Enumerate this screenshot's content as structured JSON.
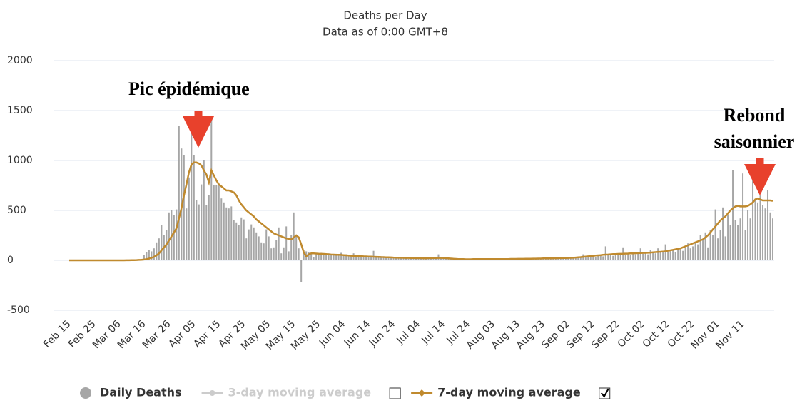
{
  "chart_data": {
    "type": "bar_line",
    "title": "Deaths per Day",
    "subtitle": "Data as of 0:00 GMT+8",
    "categories": [
      "Feb 15",
      null,
      null,
      null,
      null,
      null,
      null,
      null,
      null,
      null,
      "Feb 25",
      null,
      null,
      null,
      null,
      null,
      null,
      null,
      null,
      null,
      "Mar 06",
      null,
      null,
      null,
      null,
      null,
      null,
      null,
      null,
      null,
      "Mar 16",
      null,
      null,
      null,
      null,
      null,
      null,
      null,
      null,
      null,
      "Mar 26",
      null,
      null,
      null,
      null,
      null,
      null,
      null,
      null,
      null,
      "Apr 05",
      null,
      null,
      null,
      null,
      null,
      null,
      null,
      null,
      null,
      "Apr 15",
      null,
      null,
      null,
      null,
      null,
      null,
      null,
      null,
      null,
      "Apr 25",
      null,
      null,
      null,
      null,
      null,
      null,
      null,
      null,
      null,
      "May 05",
      null,
      null,
      null,
      null,
      null,
      null,
      null,
      null,
      null,
      "May 15",
      null,
      null,
      null,
      null,
      null,
      null,
      null,
      null,
      null,
      "May 25",
      null,
      null,
      null,
      null,
      null,
      null,
      null,
      null,
      null,
      "Jun 04",
      null,
      null,
      null,
      null,
      null,
      null,
      null,
      null,
      null,
      "Jun 14",
      null,
      null,
      null,
      null,
      null,
      null,
      null,
      null,
      null,
      "Jun 24",
      null,
      null,
      null,
      null,
      null,
      null,
      null,
      null,
      null,
      "Jul 04",
      null,
      null,
      null,
      null,
      null,
      null,
      null,
      null,
      null,
      "Jul 14",
      null,
      null,
      null,
      null,
      null,
      null,
      null,
      null,
      null,
      "Jul 24",
      null,
      null,
      null,
      null,
      null,
      null,
      null,
      null,
      null,
      "Aug 03",
      null,
      null,
      null,
      null,
      null,
      null,
      null,
      null,
      null,
      "Aug 13",
      null,
      null,
      null,
      null,
      null,
      null,
      null,
      null,
      null,
      "Aug 23",
      null,
      null,
      null,
      null,
      null,
      null,
      null,
      null,
      null,
      "Sep 02",
      null,
      null,
      null,
      null,
      null,
      null,
      null,
      null,
      null,
      "Sep 12",
      null,
      null,
      null,
      null,
      null,
      null,
      null,
      null,
      null,
      "Sep 22",
      null,
      null,
      null,
      null,
      null,
      null,
      null,
      null,
      null,
      "Oct 02",
      null,
      null,
      null,
      null,
      null,
      null,
      null,
      null,
      null,
      "Oct 12",
      null,
      null,
      null,
      null,
      null,
      null,
      null,
      null,
      null,
      "Oct 22",
      null,
      null,
      null,
      null,
      null,
      null,
      null,
      null,
      null,
      "Nov 01",
      null,
      null,
      null,
      null,
      null,
      null,
      null,
      null,
      null,
      "Nov 11",
      null,
      null,
      null,
      null,
      null,
      null,
      null,
      null,
      null,
      null,
      null,
      null
    ],
    "series": [
      {
        "name": "Daily Deaths",
        "kind": "bar",
        "color": "#a6a6a6",
        "values": [
          0,
          0,
          0,
          0,
          0,
          1,
          0,
          0,
          0,
          0,
          0,
          0,
          0,
          0,
          0,
          0,
          0,
          0,
          0,
          0,
          0,
          1,
          2,
          1,
          3,
          4,
          3,
          5,
          10,
          12,
          50,
          80,
          100,
          90,
          120,
          180,
          220,
          350,
          250,
          300,
          480,
          500,
          450,
          510,
          1350,
          1120,
          1050,
          520,
          830,
          1400,
          1050,
          600,
          560,
          760,
          1000,
          550,
          650,
          1430,
          750,
          750,
          750,
          620,
          580,
          530,
          520,
          540,
          400,
          380,
          350,
          430,
          410,
          220,
          310,
          360,
          330,
          280,
          240,
          180,
          170,
          310,
          240,
          120,
          130,
          200,
          330,
          70,
          130,
          340,
          90,
          250,
          480,
          250,
          120,
          -220,
          100,
          90,
          80,
          70,
          30,
          60,
          70,
          75,
          65,
          60,
          70,
          60,
          50,
          65,
          55,
          75,
          50,
          60,
          40,
          45,
          70,
          35,
          40,
          55,
          30,
          45,
          35,
          40,
          95,
          30,
          35,
          40,
          30,
          25,
          30,
          35,
          25,
          30,
          20,
          25,
          20,
          30,
          15,
          20,
          25,
          20,
          15,
          20,
          15,
          20,
          25,
          15,
          20,
          15,
          60,
          20,
          15,
          20,
          25,
          20,
          15,
          10,
          15,
          20,
          10,
          15,
          10,
          15,
          10,
          15,
          20,
          10,
          15,
          10,
          15,
          20,
          15,
          10,
          15,
          20,
          15,
          10,
          15,
          20,
          15,
          10,
          15,
          20,
          15,
          10,
          15,
          20,
          15,
          20,
          15,
          25,
          20,
          15,
          25,
          20,
          15,
          30,
          25,
          20,
          30,
          25,
          20,
          30,
          25,
          35,
          30,
          25,
          60,
          30,
          40,
          35,
          40,
          35,
          50,
          45,
          40,
          140,
          50,
          60,
          45,
          55,
          60,
          70,
          130,
          55,
          65,
          50,
          70,
          60,
          80,
          120,
          65,
          75,
          60,
          100,
          80,
          70,
          120,
          90,
          85,
          160,
          80,
          90,
          100,
          85,
          120,
          110,
          95,
          130,
          170,
          120,
          140,
          180,
          160,
          250,
          200,
          280,
          130,
          300,
          250,
          510,
          220,
          300,
          530,
          240,
          450,
          350,
          900,
          400,
          350,
          420,
          870,
          300,
          500,
          420,
          850,
          600,
          580,
          650,
          550,
          520,
          700,
          480,
          420
        ]
      },
      {
        "name": "3-day moving average",
        "kind": "line",
        "color": "#cccccc",
        "visible": false
      },
      {
        "name": "7-day moving average",
        "kind": "line",
        "color": "#c08a2e",
        "visible": true,
        "values": [
          0,
          0,
          0,
          0,
          0,
          0,
          0,
          0,
          0,
          0,
          0,
          0,
          0,
          0,
          0,
          0,
          0,
          0,
          0,
          0,
          0,
          0,
          0,
          1,
          1,
          2,
          2,
          3,
          4,
          5,
          8,
          12,
          18,
          25,
          35,
          50,
          70,
          100,
          130,
          160,
          200,
          240,
          280,
          320,
          420,
          520,
          650,
          760,
          880,
          960,
          980,
          980,
          970,
          950,
          900,
          860,
          780,
          900,
          850,
          800,
          760,
          740,
          720,
          700,
          700,
          690,
          680,
          650,
          600,
          560,
          530,
          500,
          480,
          460,
          440,
          410,
          390,
          370,
          350,
          330,
          310,
          290,
          270,
          260,
          250,
          240,
          230,
          220,
          215,
          210,
          230,
          250,
          230,
          160,
          80,
          40,
          60,
          70,
          70,
          68,
          66,
          65,
          64,
          62,
          60,
          58,
          57,
          56,
          55,
          54,
          52,
          50,
          48,
          46,
          45,
          44,
          43,
          42,
          40,
          39,
          38,
          37,
          36,
          35,
          34,
          33,
          32,
          31,
          30,
          29,
          28,
          27,
          26,
          26,
          25,
          24,
          24,
          23,
          23,
          22,
          22,
          22,
          21,
          21,
          22,
          22,
          23,
          23,
          24,
          24,
          23,
          22,
          20,
          18,
          16,
          14,
          13,
          12,
          12,
          11,
          11,
          11,
          12,
          12,
          12,
          12,
          12,
          12,
          12,
          12,
          12,
          12,
          12,
          13,
          13,
          13,
          13,
          14,
          14,
          14,
          15,
          15,
          15,
          16,
          16,
          16,
          17,
          17,
          18,
          18,
          19,
          19,
          20,
          20,
          21,
          21,
          22,
          22,
          23,
          23,
          24,
          25,
          26,
          28,
          30,
          32,
          35,
          38,
          40,
          42,
          45,
          48,
          50,
          52,
          55,
          57,
          58,
          60,
          62,
          63,
          64,
          65,
          66,
          67,
          68,
          70,
          70,
          71,
          72,
          73,
          74,
          75,
          76,
          78,
          80,
          82,
          84,
          86,
          88,
          90,
          95,
          100,
          105,
          110,
          115,
          120,
          130,
          140,
          150,
          160,
          170,
          180,
          190,
          200,
          210,
          230,
          250,
          280,
          310,
          340,
          370,
          400,
          420,
          440,
          470,
          500,
          520,
          540,
          545,
          540,
          540,
          540,
          545,
          560,
          580,
          610,
          620,
          610,
          600,
          600,
          600,
          600,
          595
        ]
      }
    ],
    "ylim": [
      -500,
      2000
    ],
    "yticks": [
      -500,
      0,
      500,
      1000,
      1500,
      2000
    ],
    "grid": true,
    "legend": "bottom",
    "annotations": [
      {
        "lines": [
          "Pic épidémique"
        ]
      },
      {
        "lines": [
          "Rebond",
          "saisonnier"
        ]
      }
    ]
  }
}
